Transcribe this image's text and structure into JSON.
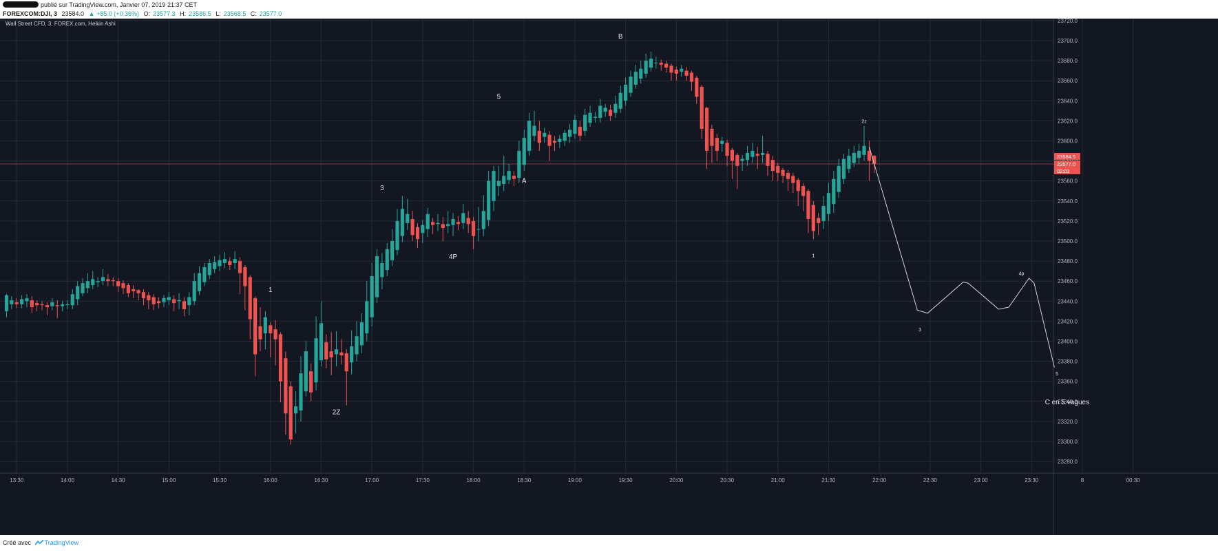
{
  "header": {
    "published_line": "publié sur TradingView.com, Janvier 07, 2019 21:37 CET",
    "symbol": "FOREXCOM:DJI, 3",
    "last": "23584.0",
    "change": "▲ +85.0 (+0.36%)",
    "open_label": "O:",
    "open": "23577.3",
    "high_label": "H:",
    "high": "23586.5",
    "low_label": "L:",
    "low": "23568.5",
    "close_label": "C:",
    "close": "23577.0"
  },
  "colors": {
    "up": "#26a69a",
    "down": "#ef5350",
    "background": "#131722",
    "grid": "#262b38",
    "text": "#b2b5be"
  },
  "footer": {
    "made_with": "Créé avec",
    "brand": "TradingView"
  },
  "chart_data": {
    "type": "candlestick",
    "title": "Wall Street CFD, 3, FOREX.com, Heikin Ashi",
    "ylim": [
      23270,
      23725
    ],
    "y_ticks": [
      23280,
      23300,
      23320,
      23340,
      23360,
      23380,
      23400,
      23420,
      23440,
      23460,
      23480,
      23500,
      23520,
      23540,
      23560,
      23580,
      23600,
      23620,
      23640,
      23660,
      23680,
      23700,
      23720
    ],
    "x_ticks": [
      "13:30",
      "14:00",
      "14:30",
      "15:00",
      "15:30",
      "16:00",
      "16:30",
      "17:00",
      "17:30",
      "18:00",
      "18:30",
      "19:00",
      "19:30",
      "20:00",
      "20:30",
      "21:00",
      "21:30",
      "22:00",
      "22:30",
      "23:00",
      "23:30",
      "8",
      "00:30"
    ],
    "x_start": "13:24",
    "interval_minutes": 3,
    "price_labels": [
      "23584.5",
      "23577.0",
      "02:01"
    ],
    "candles": [
      [
        23430,
        23446,
        23424,
        23447
      ],
      [
        23437,
        23441,
        23432,
        23445
      ],
      [
        23439,
        23437,
        23433,
        23443
      ],
      [
        23437,
        23442,
        23433,
        23446
      ],
      [
        23440,
        23443,
        23434,
        23447
      ],
      [
        23441,
        23434,
        23428,
        23445
      ],
      [
        23438,
        23436,
        23430,
        23441
      ],
      [
        23437,
        23436,
        23431,
        23440
      ],
      [
        23436,
        23434,
        23426,
        23439
      ],
      [
        23435,
        23439,
        23431,
        23443
      ],
      [
        23436,
        23435,
        23423,
        23441
      ],
      [
        23435,
        23437,
        23430,
        23440
      ],
      [
        23436,
        23437,
        23432,
        23441
      ],
      [
        23436,
        23447,
        23432,
        23452
      ],
      [
        23442,
        23455,
        23436,
        23460
      ],
      [
        23448,
        23458,
        23445,
        23463
      ],
      [
        23453,
        23460,
        23448,
        23468
      ],
      [
        23456,
        23462,
        23452,
        23470
      ],
      [
        23459,
        23460,
        23454,
        23464
      ],
      [
        23460,
        23464,
        23456,
        23472
      ],
      [
        23462,
        23460,
        23455,
        23467
      ],
      [
        23461,
        23460,
        23455,
        23464
      ],
      [
        23460,
        23455,
        23449,
        23463
      ],
      [
        23458,
        23453,
        23447,
        23461
      ],
      [
        23456,
        23448,
        23444,
        23458
      ],
      [
        23452,
        23450,
        23443,
        23456
      ],
      [
        23451,
        23448,
        23441,
        23452
      ],
      [
        23449,
        23443,
        23436,
        23452
      ],
      [
        23446,
        23441,
        23432,
        23449
      ],
      [
        23444,
        23437,
        23431,
        23447
      ],
      [
        23440,
        23438,
        23433,
        23444
      ],
      [
        23439,
        23443,
        23434,
        23446
      ],
      [
        23441,
        23444,
        23436,
        23449
      ],
      [
        23442,
        23438,
        23430,
        23446
      ],
      [
        23440,
        23441,
        23432,
        23448
      ],
      [
        23440,
        23432,
        23425,
        23444
      ],
      [
        23436,
        23444,
        23426,
        23449
      ],
      [
        23440,
        23460,
        23436,
        23468
      ],
      [
        23450,
        23468,
        23446,
        23475
      ],
      [
        23459,
        23474,
        23455,
        23478
      ],
      [
        23466,
        23478,
        23462,
        23482
      ],
      [
        23472,
        23479,
        23468,
        23485
      ],
      [
        23475,
        23481,
        23470,
        23486
      ],
      [
        23478,
        23482,
        23473,
        23489
      ],
      [
        23480,
        23476,
        23471,
        23484
      ],
      [
        23478,
        23482,
        23472,
        23490
      ],
      [
        23480,
        23468,
        23447,
        23484
      ],
      [
        23474,
        23455,
        23431,
        23476
      ],
      [
        23464,
        23422,
        23402,
        23466
      ],
      [
        23443,
        23387,
        23365,
        23445
      ],
      [
        23415,
        23402,
        23390,
        23434
      ],
      [
        23408,
        23424,
        23392,
        23430
      ],
      [
        23416,
        23408,
        23384,
        23419
      ],
      [
        23412,
        23402,
        23376,
        23421
      ],
      [
        23407,
        23360,
        23339,
        23409
      ],
      [
        23383,
        23328,
        23307,
        23390
      ],
      [
        23355,
        23302,
        23297,
        23360
      ],
      [
        23328,
        23335,
        23308,
        23350
      ],
      [
        23331,
        23368,
        23320,
        23385
      ],
      [
        23350,
        23390,
        23345,
        23400
      ],
      [
        23370,
        23349,
        23340,
        23378
      ],
      [
        23359,
        23403,
        23351,
        23425
      ],
      [
        23381,
        23418,
        23375,
        23440
      ],
      [
        23399,
        23382,
        23373,
        23407
      ],
      [
        23390,
        23384,
        23366,
        23409
      ],
      [
        23387,
        23392,
        23375,
        23410
      ],
      [
        23389,
        23386,
        23377,
        23402
      ],
      [
        23388,
        23370,
        23336,
        23392
      ],
      [
        23379,
        23395,
        23367,
        23411
      ],
      [
        23387,
        23405,
        23380,
        23420
      ],
      [
        23396,
        23419,
        23388,
        23428
      ],
      [
        23408,
        23440,
        23400,
        23460
      ],
      [
        23424,
        23465,
        23415,
        23478
      ],
      [
        23444,
        23485,
        23438,
        23492
      ],
      [
        23464,
        23478,
        23452,
        23488
      ],
      [
        23471,
        23492,
        23465,
        23498
      ],
      [
        23481,
        23500,
        23475,
        23512
      ],
      [
        23491,
        23520,
        23486,
        23532
      ],
      [
        23505,
        23532,
        23499,
        23545
      ],
      [
        23518,
        23527,
        23511,
        23542
      ],
      [
        23522,
        23506,
        23500,
        23530
      ],
      [
        23514,
        23502,
        23493,
        23518
      ],
      [
        23508,
        23516,
        23498,
        23521
      ],
      [
        23512,
        23527,
        23504,
        23533
      ],
      [
        23519,
        23516,
        23507,
        23523
      ],
      [
        23517,
        23518,
        23510,
        23527
      ],
      [
        23517,
        23513,
        23500,
        23524
      ],
      [
        23515,
        23517,
        23508,
        23530
      ],
      [
        23516,
        23522,
        23505,
        23528
      ],
      [
        23519,
        23517,
        23511,
        23525
      ],
      [
        23518,
        23528,
        23512,
        23537
      ],
      [
        23523,
        23517,
        23508,
        23530
      ],
      [
        23520,
        23505,
        23492,
        23524
      ],
      [
        23512,
        23512,
        23500,
        23534
      ],
      [
        23512,
        23530,
        23505,
        23546
      ],
      [
        23521,
        23560,
        23515,
        23570
      ],
      [
        23540,
        23570,
        23530,
        23575
      ],
      [
        23555,
        23560,
        23545,
        23575
      ],
      [
        23557,
        23565,
        23550,
        23585
      ],
      [
        23561,
        23570,
        23557,
        23577
      ],
      [
        23565,
        23562,
        23555,
        23570
      ],
      [
        23563,
        23590,
        23558,
        23600
      ],
      [
        23576,
        23603,
        23570,
        23611
      ],
      [
        23590,
        23620,
        23585,
        23628
      ],
      [
        23605,
        23615,
        23600,
        23630
      ],
      [
        23610,
        23598,
        23590,
        23620
      ],
      [
        23604,
        23608,
        23598,
        23613
      ],
      [
        23606,
        23595,
        23580,
        23610
      ],
      [
        23600,
        23598,
        23590,
        23605
      ],
      [
        23599,
        23602,
        23593,
        23606
      ],
      [
        23600,
        23608,
        23595,
        23611
      ],
      [
        23604,
        23611,
        23598,
        23617
      ],
      [
        23607,
        23621,
        23602,
        23626
      ],
      [
        23614,
        23605,
        23600,
        23620
      ],
      [
        23610,
        23626,
        23605,
        23632
      ],
      [
        23618,
        23628,
        23614,
        23635
      ],
      [
        23623,
        23624,
        23618,
        23629
      ],
      [
        23623,
        23635,
        23618,
        23642
      ],
      [
        23629,
        23633,
        23624,
        23637
      ],
      [
        23631,
        23625,
        23620,
        23636
      ],
      [
        23628,
        23637,
        23623,
        23645
      ],
      [
        23632,
        23648,
        23628,
        23655
      ],
      [
        23640,
        23656,
        23635,
        23663
      ],
      [
        23648,
        23664,
        23644,
        23670
      ],
      [
        23656,
        23669,
        23652,
        23676
      ],
      [
        23662,
        23672,
        23657,
        23680
      ],
      [
        23667,
        23680,
        23663,
        23687
      ],
      [
        23673,
        23682,
        23669,
        23689
      ],
      [
        23678,
        23678,
        23672,
        23684
      ],
      [
        23678,
        23676,
        23670,
        23681
      ],
      [
        23677,
        23673,
        23668,
        23680
      ],
      [
        23675,
        23668,
        23660,
        23677
      ],
      [
        23671,
        23667,
        23660,
        23674
      ],
      [
        23669,
        23672,
        23664,
        23676
      ],
      [
        23670,
        23665,
        23660,
        23674
      ],
      [
        23668,
        23659,
        23650,
        23670
      ],
      [
        23663,
        23644,
        23637,
        23665
      ],
      [
        23654,
        23612,
        23602,
        23656
      ],
      [
        23633,
        23590,
        23572,
        23634
      ],
      [
        23612,
        23595,
        23578,
        23616
      ],
      [
        23603,
        23590,
        23580,
        23607
      ],
      [
        23597,
        23600,
        23589,
        23604
      ],
      [
        23598,
        23585,
        23575,
        23601
      ],
      [
        23591,
        23580,
        23562,
        23593
      ],
      [
        23586,
        23575,
        23552,
        23588
      ],
      [
        23580,
        23582,
        23570,
        23586
      ],
      [
        23581,
        23588,
        23575,
        23595
      ],
      [
        23584,
        23590,
        23578,
        23598
      ],
      [
        23587,
        23585,
        23572,
        23594
      ],
      [
        23586,
        23588,
        23578,
        23605
      ],
      [
        23587,
        23575,
        23565,
        23590
      ],
      [
        23581,
        23570,
        23560,
        23585
      ],
      [
        23575,
        23568,
        23560,
        23578
      ],
      [
        23571,
        23565,
        23558,
        23573
      ],
      [
        23568,
        23562,
        23550,
        23571
      ],
      [
        23565,
        23558,
        23548,
        23568
      ],
      [
        23561,
        23550,
        23535,
        23563
      ],
      [
        23555,
        23545,
        23530,
        23558
      ],
      [
        23550,
        23522,
        23508,
        23552
      ],
      [
        23536,
        23510,
        23502,
        23540
      ],
      [
        23523,
        23518,
        23506,
        23528
      ],
      [
        23520,
        23535,
        23512,
        23545
      ],
      [
        23527,
        23548,
        23520,
        23558
      ],
      [
        23537,
        23562,
        23528,
        23570
      ],
      [
        23549,
        23575,
        23543,
        23582
      ],
      [
        23562,
        23582,
        23557,
        23587
      ],
      [
        23572,
        23585,
        23568,
        23592
      ],
      [
        23578,
        23588,
        23574,
        23595
      ],
      [
        23583,
        23590,
        23577,
        23597
      ],
      [
        23586,
        23595,
        23580,
        23615
      ],
      [
        23590,
        23580,
        23560,
        23600
      ],
      [
        23585,
        23577,
        23568,
        23586
      ]
    ],
    "annotations": [
      {
        "label": "1",
        "time_index": 52,
        "price": 23449
      },
      {
        "label": "2Z",
        "time_index": 65,
        "price": 23327
      },
      {
        "label": "3",
        "time_index": 74,
        "price": 23551
      },
      {
        "label": "4P",
        "time_index": 88,
        "price": 23482
      },
      {
        "label": "5",
        "time_index": 97,
        "price": 23642
      },
      {
        "label": "A",
        "time_index": 102,
        "price": 23558
      },
      {
        "label": "B",
        "time_index": 121,
        "price": 23702
      },
      {
        "label": "2z",
        "time_index": 169,
        "price": 23618
      },
      {
        "label": "1",
        "time_index": 159,
        "price": 23484
      },
      {
        "label": "3",
        "time_index": 180,
        "price": 23410
      },
      {
        "label": "4p",
        "time_index": 200,
        "price": 23466
      },
      {
        "label": "5",
        "time_index": 207,
        "price": 23366
      },
      {
        "label": "C en 5 vagues",
        "time_index": 209,
        "price": 23337
      }
    ],
    "projection_path": [
      [
        170,
        23594
      ],
      [
        179.5,
        23431
      ],
      [
        181.5,
        23428
      ],
      [
        188.5,
        23459
      ],
      [
        189.5,
        23458
      ],
      [
        195.5,
        23432
      ],
      [
        197.5,
        23434
      ],
      [
        201.5,
        23463
      ],
      [
        202.5,
        23458
      ],
      [
        206.5,
        23374
      ]
    ]
  }
}
